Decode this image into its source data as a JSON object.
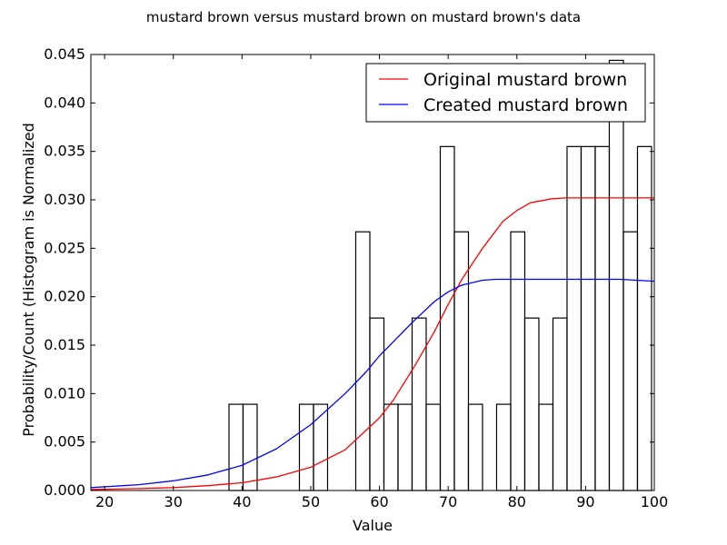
{
  "chart_data": {
    "type": "histogram",
    "title": "mustard brown versus mustard brown on mustard brown's data",
    "xlabel": "Value",
    "ylabel": "Probability/Count (Histogram is Normalized",
    "xlim": [
      18,
      100
    ],
    "ylim": [
      0,
      0.045
    ],
    "xticks": [
      "20",
      "30",
      "40",
      "50",
      "60",
      "70",
      "80",
      "90",
      "100"
    ],
    "yticks": [
      "0.000",
      "0.005",
      "0.010",
      "0.015",
      "0.020",
      "0.025",
      "0.030",
      "0.035",
      "0.040",
      "0.045"
    ],
    "grid": false,
    "legend_position": "top-right",
    "histogram": {
      "bin_edges": [
        38.1,
        40.15,
        42.2,
        48.35,
        50.4,
        52.45,
        56.55,
        58.6,
        60.65,
        62.7,
        64.75,
        66.8,
        68.85,
        70.9,
        72.95,
        75.0,
        77.05,
        79.1,
        81.15,
        83.2,
        85.25,
        87.3,
        89.35,
        91.4,
        93.45,
        95.5,
        97.55,
        99.6
      ],
      "densities": [
        0.0089,
        0.0089,
        0.0,
        0.0089,
        0.0089,
        0.0,
        0.0267,
        0.0178,
        0.0089,
        0.0089,
        0.0178,
        0.0089,
        0.0355,
        0.0267,
        0.0089,
        0.0,
        0.0089,
        0.0267,
        0.0178,
        0.0089,
        0.0178,
        0.0355,
        0.0355,
        0.0355,
        0.0444,
        0.0267,
        0.0355
      ]
    },
    "series": [
      {
        "name": "Original mustard brown",
        "color": "#ff0000",
        "x": [
          18,
          25,
          30,
          35,
          40,
          45,
          50,
          55,
          60,
          62,
          65,
          68,
          70,
          72,
          75,
          78,
          80,
          82,
          85,
          87,
          90,
          95,
          100
        ],
        "y": [
          0.0001,
          0.0002,
          0.0003,
          0.0005,
          0.0008,
          0.0014,
          0.0024,
          0.0042,
          0.0075,
          0.0093,
          0.0127,
          0.0164,
          0.0192,
          0.0218,
          0.025,
          0.0278,
          0.0289,
          0.0297,
          0.0301,
          0.0302,
          0.0302,
          0.0302,
          0.0302
        ]
      },
      {
        "name": "Created mustard brown",
        "color": "#0000ff",
        "x": [
          18,
          25,
          30,
          35,
          40,
          45,
          50,
          55,
          58,
          60,
          65,
          68,
          70,
          72,
          75,
          77,
          80,
          85,
          90,
          95,
          100
        ],
        "y": [
          0.0003,
          0.0006,
          0.001,
          0.0016,
          0.0026,
          0.0043,
          0.0068,
          0.01,
          0.0122,
          0.0139,
          0.0175,
          0.0195,
          0.0205,
          0.0212,
          0.0217,
          0.0218,
          0.0218,
          0.0218,
          0.0218,
          0.0218,
          0.0216
        ]
      }
    ]
  }
}
